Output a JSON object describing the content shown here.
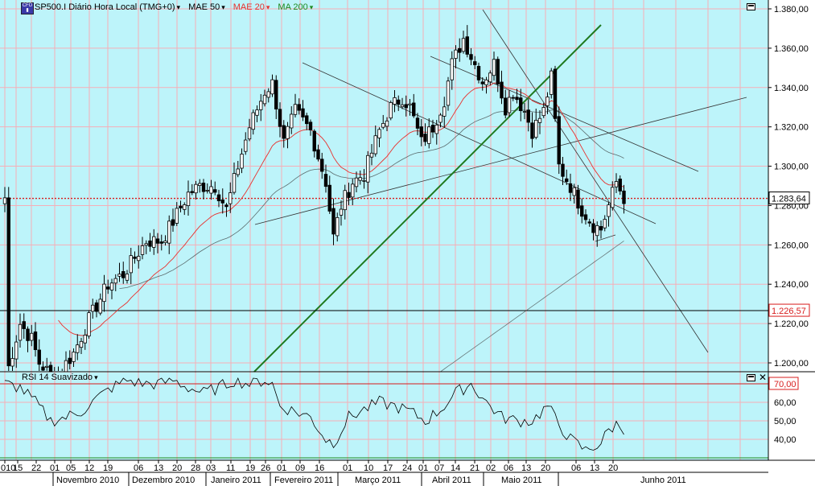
{
  "header": {
    "symbol": "SP500.I Diário Hora Local (TMG+0)",
    "ind1": "MAE 50",
    "ind2": "MAE 20",
    "ind3": "MA 200",
    "ind1_color": "#000000",
    "ind2_color": "#e8302c",
    "ind3_color": "#1f8a1f",
    "icon": "cfd-symbol-icon"
  },
  "rsi": {
    "label": "RSI 14 Suavizado",
    "levels": [
      "70,00",
      "60,00",
      "50,00",
      "40,00"
    ]
  },
  "price_labels": {
    "current": "1.283,64",
    "line2": "1.226,57"
  },
  "chart_data": {
    "type": "candlestick",
    "ylim": [
      1190,
      1385
    ],
    "y_ticks": [
      "1.380,00",
      "1.360,00",
      "1.340,00",
      "1.320,00",
      "1.300,00",
      "1.280,00",
      "1.260,00",
      "1.240,00",
      "1.220,00",
      "1.200,00"
    ],
    "x_day_labels": [
      "010",
      "15",
      "22",
      "01",
      "05",
      "12",
      "19",
      "06",
      "13",
      "20",
      "28",
      "03",
      "11",
      "19",
      "26",
      "01",
      "09",
      "16",
      "01",
      "10",
      "17",
      "24",
      "01",
      "07",
      "14",
      "21",
      "02",
      "06",
      "13",
      "20",
      "06",
      "13",
      "20"
    ],
    "x_month_labels": [
      "Novembro 2010",
      "Dezembro 2010",
      "Janeiro 2011",
      "Fevereiro 2011",
      "Março 2011",
      "Abril 2011",
      "Maio 2011",
      "Junho 2011"
    ],
    "current_price": 1283.64,
    "support_line": 1226.57,
    "rsi_ylim": [
      30,
      78
    ],
    "rsi_overbought": 70,
    "close_keypoints": [
      [
        1,
        1198
      ],
      [
        4,
        1220
      ],
      [
        7,
        1212
      ],
      [
        9,
        1200
      ],
      [
        13,
        1192
      ],
      [
        18,
        1205
      ],
      [
        22,
        1222
      ],
      [
        27,
        1240
      ],
      [
        31,
        1245
      ],
      [
        37,
        1262
      ],
      [
        41,
        1262
      ],
      [
        44,
        1272
      ],
      [
        48,
        1286
      ],
      [
        51,
        1290
      ],
      [
        55,
        1290
      ],
      [
        58,
        1278
      ],
      [
        61,
        1300
      ],
      [
        64,
        1320
      ],
      [
        68,
        1338
      ],
      [
        70,
        1342
      ],
      [
        73,
        1312
      ],
      [
        76,
        1328
      ],
      [
        80,
        1318
      ],
      [
        84,
        1292
      ],
      [
        86,
        1264
      ],
      [
        88,
        1280
      ],
      [
        91,
        1292
      ],
      [
        94,
        1296
      ],
      [
        98,
        1318
      ],
      [
        101,
        1330
      ],
      [
        104,
        1335
      ],
      [
        106,
        1330
      ],
      [
        109,
        1312
      ],
      [
        112,
        1320
      ],
      [
        115,
        1334
      ],
      [
        117,
        1352
      ],
      [
        120,
        1365
      ],
      [
        122,
        1356
      ],
      [
        125,
        1343
      ],
      [
        128,
        1352
      ],
      [
        131,
        1330
      ],
      [
        133,
        1338
      ],
      [
        136,
        1328
      ],
      [
        138,
        1318
      ],
      [
        141,
        1328
      ],
      [
        143,
        1345
      ],
      [
        145,
        1300
      ],
      [
        148,
        1290
      ],
      [
        151,
        1278
      ],
      [
        154,
        1270
      ],
      [
        156,
        1268
      ],
      [
        158,
        1280
      ],
      [
        160,
        1292
      ],
      [
        162,
        1284
      ]
    ],
    "rsi_keypoints": [
      [
        0,
        70
      ],
      [
        4,
        68
      ],
      [
        8,
        60
      ],
      [
        12,
        50
      ],
      [
        16,
        52
      ],
      [
        20,
        55
      ],
      [
        24,
        62
      ],
      [
        28,
        68
      ],
      [
        32,
        72
      ],
      [
        36,
        70
      ],
      [
        40,
        70
      ],
      [
        44,
        72
      ],
      [
        48,
        68
      ],
      [
        52,
        65
      ],
      [
        56,
        68
      ],
      [
        60,
        72
      ],
      [
        64,
        70
      ],
      [
        68,
        72
      ],
      [
        70,
        70
      ],
      [
        72,
        58
      ],
      [
        76,
        55
      ],
      [
        80,
        52
      ],
      [
        84,
        40
      ],
      [
        86,
        38
      ],
      [
        90,
        52
      ],
      [
        94,
        56
      ],
      [
        98,
        60
      ],
      [
        102,
        58
      ],
      [
        106,
        55
      ],
      [
        110,
        50
      ],
      [
        114,
        56
      ],
      [
        118,
        65
      ],
      [
        122,
        70
      ],
      [
        126,
        60
      ],
      [
        130,
        52
      ],
      [
        134,
        50
      ],
      [
        138,
        50
      ],
      [
        142,
        58
      ],
      [
        145,
        48
      ],
      [
        148,
        40
      ],
      [
        152,
        34
      ],
      [
        156,
        38
      ],
      [
        158,
        45
      ],
      [
        160,
        48
      ],
      [
        162,
        46
      ]
    ]
  }
}
